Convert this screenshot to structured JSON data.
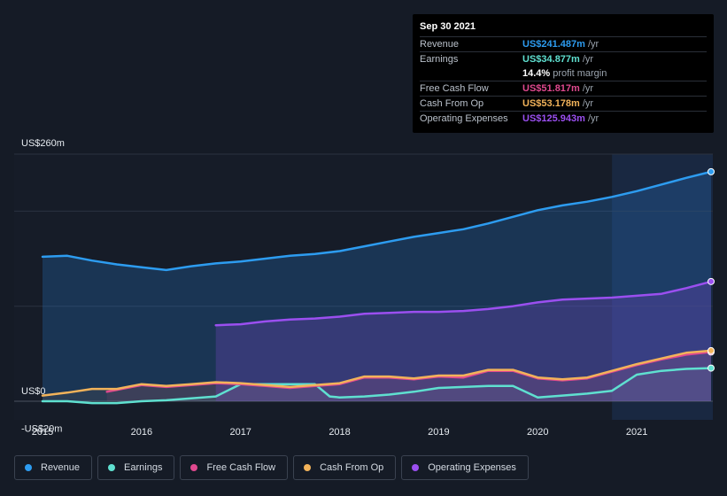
{
  "tooltip": {
    "date": "Sep 30 2021",
    "rows": [
      {
        "label": "Revenue",
        "value": "US$241.487m",
        "unit": "/yr",
        "color": "#2d9cf0"
      },
      {
        "label": "Earnings",
        "value": "US$34.877m",
        "unit": "/yr",
        "color": "#5fe0d0"
      },
      {
        "label": "",
        "value": "14.4%",
        "unit": "profit margin",
        "color": "#ffffff"
      },
      {
        "label": "Free Cash Flow",
        "value": "US$51.817m",
        "unit": "/yr",
        "color": "#e0498f"
      },
      {
        "label": "Cash From Op",
        "value": "US$53.178m",
        "unit": "/yr",
        "color": "#f2b35a"
      },
      {
        "label": "Operating Expenses",
        "value": "US$125.943m",
        "unit": "/yr",
        "color": "#9b4ff0"
      }
    ]
  },
  "legend": [
    {
      "label": "Revenue",
      "color": "#2d9cf0"
    },
    {
      "label": "Earnings",
      "color": "#5fe0d0"
    },
    {
      "label": "Free Cash Flow",
      "color": "#e0498f"
    },
    {
      "label": "Cash From Op",
      "color": "#f2b35a"
    },
    {
      "label": "Operating Expenses",
      "color": "#9b4ff0"
    }
  ],
  "chart_data": {
    "type": "area",
    "title": "",
    "xlabel": "",
    "ylabel": "",
    "ylim": [
      -20,
      260
    ],
    "xlim": [
      2015,
      2021.75
    ],
    "y_tick_labels": [
      {
        "value": 260,
        "label": "US$260m"
      },
      {
        "value": 0,
        "label": "US$0"
      },
      {
        "value": -20,
        "label": "-US$20m"
      }
    ],
    "x_tick_labels": [
      "2015",
      "2016",
      "2017",
      "2018",
      "2019",
      "2020",
      "2021"
    ],
    "gridlines": [
      260,
      200,
      100,
      0
    ],
    "highlight_from": 2020.75,
    "series": [
      {
        "name": "Revenue",
        "color": "#2d9cf0",
        "x": [
          2015,
          2015.25,
          2015.5,
          2015.75,
          2016,
          2016.25,
          2016.5,
          2016.75,
          2017,
          2017.25,
          2017.5,
          2017.75,
          2018,
          2018.25,
          2018.5,
          2018.75,
          2019,
          2019.25,
          2019.5,
          2019.75,
          2020,
          2020.25,
          2020.5,
          2020.75,
          2021,
          2021.25,
          2021.5,
          2021.75
        ],
        "values": [
          152,
          153,
          148,
          144,
          141,
          138,
          142,
          145,
          147,
          150,
          153,
          155,
          158,
          163,
          168,
          173,
          177,
          181,
          187,
          194,
          201,
          206,
          210,
          215,
          221,
          228,
          235,
          241.487
        ]
      },
      {
        "name": "Earnings",
        "color": "#5fe0d0",
        "x": [
          2015,
          2015.25,
          2015.5,
          2015.75,
          2016,
          2016.25,
          2016.5,
          2016.75,
          2017,
          2017.25,
          2017.5,
          2017.75,
          2017.9,
          2018,
          2018.25,
          2018.5,
          2018.75,
          2019,
          2019.25,
          2019.5,
          2019.75,
          2020,
          2020.25,
          2020.5,
          2020.75,
          2021,
          2021.25,
          2021.5,
          2021.75
        ],
        "values": [
          0,
          0,
          -2,
          -2,
          0,
          1,
          3,
          5,
          18,
          18,
          18,
          18,
          5,
          4,
          5,
          7,
          10,
          14,
          15,
          16,
          16,
          4,
          6,
          8,
          11,
          28,
          32,
          34,
          34.877
        ]
      },
      {
        "name": "Free Cash Flow",
        "color": "#e0498f",
        "x": [
          2015.65,
          2016,
          2016.25,
          2016.5,
          2016.75,
          2017,
          2017.25,
          2017.5,
          2017.75,
          2018,
          2018.25,
          2018.5,
          2018.75,
          2019,
          2019.25,
          2019.5,
          2019.75,
          2020,
          2020.25,
          2020.5,
          2020.75,
          2021,
          2021.25,
          2021.5,
          2021.75
        ],
        "values": [
          10,
          17,
          15,
          17,
          19,
          18,
          16,
          14,
          16,
          18,
          25,
          25,
          23,
          26,
          25,
          32,
          32,
          24,
          22,
          24,
          31,
          38,
          44,
          49,
          51.817
        ]
      },
      {
        "name": "Cash From Op",
        "color": "#f2b35a",
        "x": [
          2015,
          2015.25,
          2015.5,
          2015.75,
          2016,
          2016.25,
          2016.5,
          2016.75,
          2017,
          2017.25,
          2017.5,
          2017.75,
          2018,
          2018.25,
          2018.5,
          2018.75,
          2019,
          2019.25,
          2019.5,
          2019.75,
          2020,
          2020.25,
          2020.5,
          2020.75,
          2021,
          2021.25,
          2021.5,
          2021.75
        ],
        "values": [
          6,
          9,
          13,
          13,
          18,
          16,
          18,
          20,
          19,
          17,
          15,
          17,
          19,
          26,
          26,
          24,
          27,
          27,
          33,
          33,
          25,
          23,
          25,
          32,
          39,
          45,
          51,
          53.178
        ]
      },
      {
        "name": "Operating Expenses",
        "color": "#9b4ff0",
        "x": [
          2016.75,
          2017,
          2017.25,
          2017.5,
          2017.75,
          2018,
          2018.25,
          2018.5,
          2018.75,
          2019,
          2019.25,
          2019.5,
          2019.75,
          2020,
          2020.25,
          2020.5,
          2020.75,
          2021,
          2021.25,
          2021.5,
          2021.75
        ],
        "values": [
          80,
          81,
          84,
          86,
          87,
          89,
          92,
          93,
          94,
          94,
          95,
          97,
          100,
          104,
          107,
          108,
          109,
          111,
          113,
          119,
          125.943
        ]
      }
    ]
  }
}
